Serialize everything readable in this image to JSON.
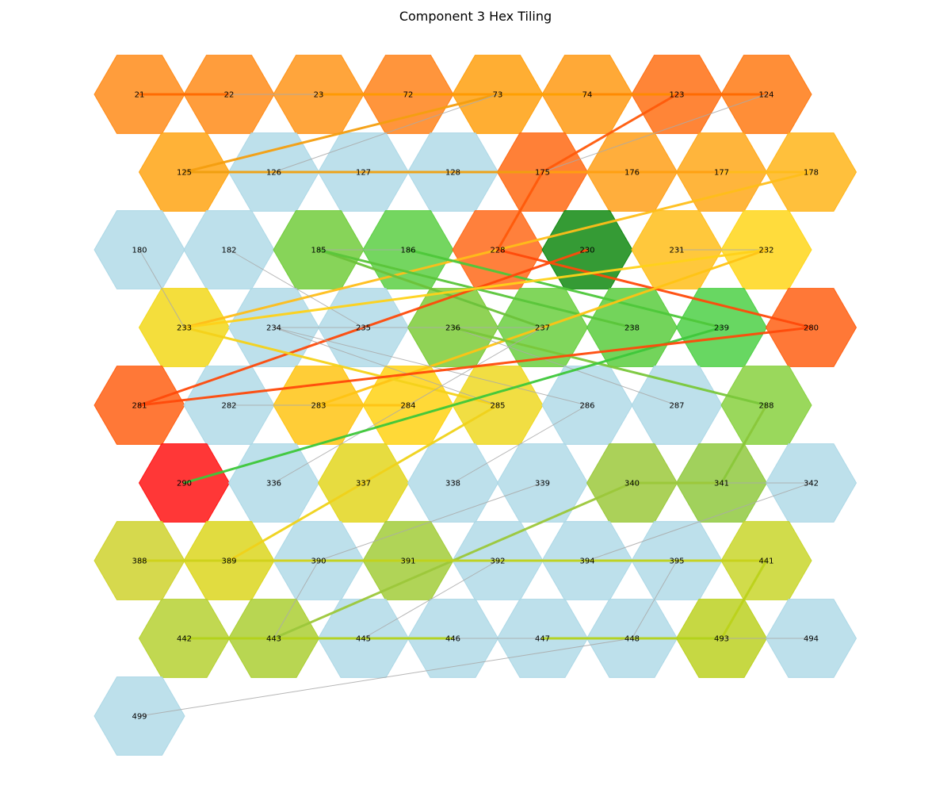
{
  "chart_data": {
    "type": "hex_tiling_graph",
    "title": "Component 3 Hex Tiling",
    "default_fill": "#add8e6",
    "edge_color_default": "#aaaaaa",
    "rows": [
      [
        {
          "id": "21",
          "fill": "#ff8c1a"
        },
        {
          "id": "22",
          "fill": "#ff8c1a"
        },
        {
          "id": "23",
          "fill": "#ff951a"
        },
        {
          "id": "72",
          "fill": "#ff821a"
        },
        {
          "id": "73",
          "fill": "#ffa00f"
        },
        {
          "id": "74",
          "fill": "#ff9a14"
        },
        {
          "id": "123",
          "fill": "#ff7014"
        },
        {
          "id": "124",
          "fill": "#ff7a14"
        }
      ],
      [
        {
          "id": "125",
          "fill": "#ffa414"
        },
        {
          "id": "126",
          "fill": null
        },
        {
          "id": "127",
          "fill": null
        },
        {
          "id": "128",
          "fill": null
        },
        {
          "id": "175",
          "fill": "#ff6a14"
        },
        {
          "id": "176",
          "fill": "#ffa01a"
        },
        {
          "id": "177",
          "fill": "#ffa81a"
        },
        {
          "id": "178",
          "fill": "#ffb51a"
        }
      ],
      [
        {
          "id": "180",
          "fill": null
        },
        {
          "id": "182",
          "fill": null
        },
        {
          "id": "185",
          "fill": "#72cc3c"
        },
        {
          "id": "186",
          "fill": "#5ccf44"
        },
        {
          "id": "228",
          "fill": "#ff6a1a"
        },
        {
          "id": "230",
          "fill": "#128a12"
        },
        {
          "id": "231",
          "fill": "#ffbe1a"
        },
        {
          "id": "232",
          "fill": "#ffd61a"
        }
      ],
      [
        {
          "id": "233",
          "fill": "#f2d81a"
        },
        {
          "id": "234",
          "fill": null
        },
        {
          "id": "235",
          "fill": null
        },
        {
          "id": "236",
          "fill": "#7ccb38"
        },
        {
          "id": "237",
          "fill": "#6bcf40"
        },
        {
          "id": "238",
          "fill": "#5bcc3e"
        },
        {
          "id": "239",
          "fill": "#4ed046"
        },
        {
          "id": "280",
          "fill": "#ff6014"
        }
      ],
      [
        {
          "id": "281",
          "fill": "#ff6014"
        },
        {
          "id": "282",
          "fill": null
        },
        {
          "id": "283",
          "fill": "#ffc414"
        },
        {
          "id": "284",
          "fill": "#ffd214"
        },
        {
          "id": "285",
          "fill": "#efd822"
        },
        {
          "id": "286",
          "fill": null
        },
        {
          "id": "287",
          "fill": null
        },
        {
          "id": "288",
          "fill": "#88d140"
        }
      ],
      [
        {
          "id": "290",
          "fill": "#ff1414"
        },
        {
          "id": "336",
          "fill": null
        },
        {
          "id": "337",
          "fill": "#e3d61e"
        },
        {
          "id": "338",
          "fill": null
        },
        {
          "id": "339",
          "fill": null
        },
        {
          "id": "340",
          "fill": "#9cc93c"
        },
        {
          "id": "341",
          "fill": "#90c940"
        },
        {
          "id": "342",
          "fill": null
        }
      ],
      [
        {
          "id": "388",
          "fill": "#cfd22e"
        },
        {
          "id": "389",
          "fill": "#dcd61e"
        },
        {
          "id": "390",
          "fill": null
        },
        {
          "id": "391",
          "fill": "#a2cc3a"
        },
        {
          "id": "392",
          "fill": null
        },
        {
          "id": "394",
          "fill": null
        },
        {
          "id": "395",
          "fill": null
        },
        {
          "id": "441",
          "fill": "#c9d62c"
        }
      ],
      [
        {
          "id": "442",
          "fill": "#b6d132"
        },
        {
          "id": "443",
          "fill": "#abcf34"
        },
        {
          "id": "445",
          "fill": null
        },
        {
          "id": "446",
          "fill": null
        },
        {
          "id": "447",
          "fill": null
        },
        {
          "id": "448",
          "fill": null
        },
        {
          "id": "493",
          "fill": "#bcd122"
        },
        {
          "id": "494",
          "fill": null
        }
      ],
      [
        {
          "id": "499",
          "fill": null
        }
      ]
    ],
    "edges": [
      {
        "from": "21",
        "to": "22",
        "color": "#ff6a00",
        "weight": "thick"
      },
      {
        "from": "22",
        "to": "23",
        "color": "#aaaaaa",
        "weight": "thin"
      },
      {
        "from": "23",
        "to": "72",
        "color": "#ff9a00",
        "weight": "thick"
      },
      {
        "from": "72",
        "to": "73",
        "color": "#ff9a00",
        "weight": "thick"
      },
      {
        "from": "73",
        "to": "74",
        "color": "#ffa000",
        "weight": "thick"
      },
      {
        "from": "74",
        "to": "123",
        "color": "#ff8a00",
        "weight": "thick"
      },
      {
        "from": "123",
        "to": "124",
        "color": "#ff6a00",
        "weight": "thick"
      },
      {
        "from": "73",
        "to": "125",
        "color": "#f59f0f",
        "weight": "thick"
      },
      {
        "from": "73",
        "to": "126",
        "color": "#aaaaaa",
        "weight": "thin"
      },
      {
        "from": "123",
        "to": "175",
        "color": "#ff5a0a",
        "weight": "thick"
      },
      {
        "from": "124",
        "to": "175",
        "color": "#aaaaaa",
        "weight": "thin"
      },
      {
        "from": "125",
        "to": "126",
        "color": "#f0a010",
        "weight": "thick"
      },
      {
        "from": "126",
        "to": "127",
        "color": "#f0a010",
        "weight": "thick"
      },
      {
        "from": "127",
        "to": "128",
        "color": "#f0a010",
        "weight": "thick"
      },
      {
        "from": "128",
        "to": "175",
        "color": "#f0a010",
        "weight": "thick"
      },
      {
        "from": "175",
        "to": "176",
        "color": "#ffa010",
        "weight": "thick"
      },
      {
        "from": "176",
        "to": "177",
        "color": "#ffa010",
        "weight": "thick"
      },
      {
        "from": "177",
        "to": "178",
        "color": "#ffbc1a",
        "weight": "thick"
      },
      {
        "from": "175",
        "to": "228",
        "color": "#ff5a0a",
        "weight": "thick"
      },
      {
        "from": "178",
        "to": "233",
        "color": "#ffbe1a",
        "weight": "thick"
      },
      {
        "from": "180",
        "to": "233",
        "color": "#aaaaaa",
        "weight": "thin"
      },
      {
        "from": "182",
        "to": "235",
        "color": "#aaaaaa",
        "weight": "thin"
      },
      {
        "from": "185",
        "to": "186",
        "color": "#aaaaaa",
        "weight": "thin"
      },
      {
        "from": "185",
        "to": "237",
        "color": "#6cc23a",
        "weight": "thick"
      },
      {
        "from": "185",
        "to": "238",
        "color": "#5ac63a",
        "weight": "thick"
      },
      {
        "from": "186",
        "to": "239",
        "color": "#4ec83a",
        "weight": "thick"
      },
      {
        "from": "228",
        "to": "280",
        "color": "#ff4a0a",
        "weight": "thick"
      },
      {
        "from": "230",
        "to": "281",
        "color": "#ff4a0a",
        "weight": "thick"
      },
      {
        "from": "231",
        "to": "232",
        "color": "#aaaaaa",
        "weight": "thin"
      },
      {
        "from": "232",
        "to": "233",
        "color": "#ffd21a",
        "weight": "thick"
      },
      {
        "from": "232",
        "to": "283",
        "color": "#ffc414",
        "weight": "thick"
      },
      {
        "from": "233",
        "to": "285",
        "color": "#f5d21a",
        "weight": "thick"
      },
      {
        "from": "234",
        "to": "235",
        "color": "#aaaaaa",
        "weight": "thin"
      },
      {
        "from": "234",
        "to": "285",
        "color": "#aaaaaa",
        "weight": "thin"
      },
      {
        "from": "234",
        "to": "286",
        "color": "#aaaaaa",
        "weight": "thin"
      },
      {
        "from": "235",
        "to": "236",
        "color": "#aaaaaa",
        "weight": "thin"
      },
      {
        "from": "236",
        "to": "237",
        "color": "#aaaaaa",
        "weight": "thin"
      },
      {
        "from": "236",
        "to": "287",
        "color": "#aaaaaa",
        "weight": "thin"
      },
      {
        "from": "236",
        "to": "288",
        "color": "#7ac83a",
        "weight": "thick"
      },
      {
        "from": "237",
        "to": "336",
        "color": "#aaaaaa",
        "weight": "thin"
      },
      {
        "from": "239",
        "to": "290",
        "color": "#3ec83a",
        "weight": "thick"
      },
      {
        "from": "280",
        "to": "281",
        "color": "#ff4a0a",
        "weight": "thick"
      },
      {
        "from": "282",
        "to": "283",
        "color": "#aaaaaa",
        "weight": "thin"
      },
      {
        "from": "283",
        "to": "284",
        "color": "#ffc414",
        "weight": "thick"
      },
      {
        "from": "285",
        "to": "389",
        "color": "#f0d21a",
        "weight": "thick"
      },
      {
        "from": "286",
        "to": "338",
        "color": "#aaaaaa",
        "weight": "thin"
      },
      {
        "from": "288",
        "to": "341",
        "color": "#8ac83a",
        "weight": "thick"
      },
      {
        "from": "339",
        "to": "390",
        "color": "#aaaaaa",
        "weight": "thin"
      },
      {
        "from": "340",
        "to": "341",
        "color": "#9cc83a",
        "weight": "thick"
      },
      {
        "from": "340",
        "to": "443",
        "color": "#9cc83a",
        "weight": "thick"
      },
      {
        "from": "341",
        "to": "342",
        "color": "#aaaaaa",
        "weight": "thin"
      },
      {
        "from": "342",
        "to": "394",
        "color": "#aaaaaa",
        "weight": "thin"
      },
      {
        "from": "388",
        "to": "389",
        "color": "#cfd21a",
        "weight": "thick"
      },
      {
        "from": "389",
        "to": "390",
        "color": "#d2d21a",
        "weight": "thick"
      },
      {
        "from": "390",
        "to": "391",
        "color": "#c4d21a",
        "weight": "thick"
      },
      {
        "from": "390",
        "to": "443",
        "color": "#aaaaaa",
        "weight": "thin"
      },
      {
        "from": "391",
        "to": "392",
        "color": "#c0d21a",
        "weight": "thick"
      },
      {
        "from": "392",
        "to": "394",
        "color": "#c0d21a",
        "weight": "thick"
      },
      {
        "from": "392",
        "to": "445",
        "color": "#aaaaaa",
        "weight": "thin"
      },
      {
        "from": "394",
        "to": "395",
        "color": "#c0d21a",
        "weight": "thick"
      },
      {
        "from": "395",
        "to": "441",
        "color": "#c8d21a",
        "weight": "thick"
      },
      {
        "from": "395",
        "to": "448",
        "color": "#aaaaaa",
        "weight": "thin"
      },
      {
        "from": "441",
        "to": "493",
        "color": "#bcd21a",
        "weight": "thick"
      },
      {
        "from": "442",
        "to": "443",
        "color": "#b4d21a",
        "weight": "thick"
      },
      {
        "from": "443",
        "to": "445",
        "color": "#b4d21a",
        "weight": "thick"
      },
      {
        "from": "445",
        "to": "446",
        "color": "#b4d21a",
        "weight": "thick"
      },
      {
        "from": "446",
        "to": "447",
        "color": "#aaaaaa",
        "weight": "thin"
      },
      {
        "from": "447",
        "to": "448",
        "color": "#b4d21a",
        "weight": "thick"
      },
      {
        "from": "448",
        "to": "493",
        "color": "#b4d21a",
        "weight": "thick"
      },
      {
        "from": "493",
        "to": "494",
        "color": "#aaaaaa",
        "weight": "thin"
      },
      {
        "from": "448",
        "to": "499",
        "color": "#aaaaaa",
        "weight": "thin"
      }
    ]
  }
}
